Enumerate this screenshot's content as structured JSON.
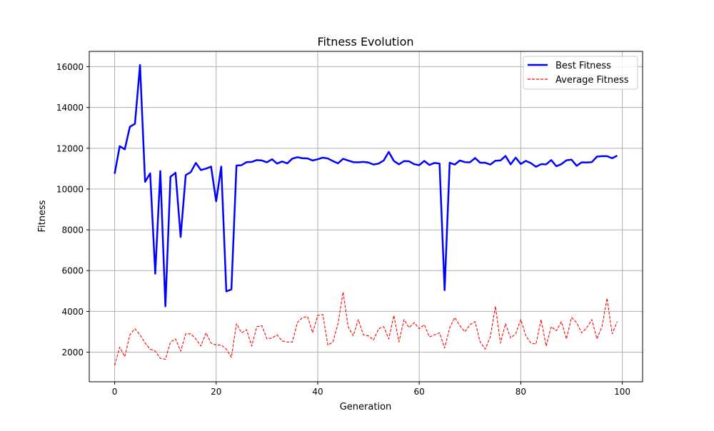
{
  "chart_data": {
    "type": "line",
    "title": "Fitness Evolution",
    "xlabel": "Generation",
    "ylabel": "Fitness",
    "xlim": [
      -5,
      104
    ],
    "ylim": [
      550,
      16750
    ],
    "grid": true,
    "legend_position": "top-right",
    "x_ticks": [
      0,
      20,
      40,
      60,
      80,
      100
    ],
    "y_ticks": [
      2000,
      4000,
      6000,
      8000,
      10000,
      12000,
      14000,
      16000
    ],
    "x": [
      0,
      1,
      2,
      3,
      4,
      5,
      6,
      7,
      8,
      9,
      10,
      11,
      12,
      13,
      14,
      15,
      16,
      17,
      18,
      19,
      20,
      21,
      22,
      23,
      24,
      25,
      26,
      27,
      28,
      29,
      30,
      31,
      32,
      33,
      34,
      35,
      36,
      37,
      38,
      39,
      40,
      41,
      42,
      43,
      44,
      45,
      46,
      47,
      48,
      49,
      50,
      51,
      52,
      53,
      54,
      55,
      56,
      57,
      58,
      59,
      60,
      61,
      62,
      63,
      64,
      65,
      66,
      67,
      68,
      69,
      70,
      71,
      72,
      73,
      74,
      75,
      76,
      77,
      78,
      79,
      80,
      81,
      82,
      83,
      84,
      85,
      86,
      87,
      88,
      89,
      90,
      91,
      92,
      93,
      94,
      95,
      96,
      97,
      98,
      99
    ],
    "series": [
      {
        "name": "Best Fitness",
        "color": "#0000ff",
        "style": "solid",
        "values": [
          10750,
          12100,
          11950,
          13050,
          13200,
          16080,
          10350,
          10770,
          5850,
          10880,
          4250,
          10600,
          10800,
          7650,
          10680,
          10830,
          11280,
          10930,
          11000,
          11100,
          9400,
          11100,
          4980,
          5080,
          11150,
          11170,
          11320,
          11330,
          11420,
          11400,
          11310,
          11460,
          11250,
          11350,
          11260,
          11490,
          11560,
          11510,
          11500,
          11400,
          11460,
          11540,
          11500,
          11370,
          11260,
          11480,
          11400,
          11320,
          11310,
          11330,
          11300,
          11200,
          11250,
          11400,
          11820,
          11380,
          11210,
          11370,
          11360,
          11220,
          11170,
          11380,
          11180,
          11280,
          11250,
          5040,
          11290,
          11200,
          11400,
          11320,
          11310,
          11520,
          11290,
          11290,
          11200,
          11390,
          11400,
          11620,
          11210,
          11540,
          11230,
          11380,
          11270,
          11090,
          11220,
          11210,
          11420,
          11120,
          11220,
          11410,
          11440,
          11140,
          11310,
          11300,
          11320,
          11590,
          11610,
          11610,
          11510,
          11640
        ]
      },
      {
        "name": "Average Fitness",
        "color": "#ff0000",
        "style": "dashed",
        "values": [
          1350,
          2250,
          1780,
          2850,
          3150,
          2850,
          2450,
          2150,
          2050,
          1700,
          1650,
          2500,
          2650,
          2050,
          2900,
          2900,
          2650,
          2300,
          2950,
          2450,
          2350,
          2350,
          2150,
          1750,
          3400,
          2950,
          3100,
          2300,
          3250,
          3300,
          2650,
          2700,
          2850,
          2550,
          2500,
          2500,
          3450,
          3700,
          3750,
          2950,
          3800,
          3850,
          2350,
          2500,
          3400,
          4950,
          3250,
          2800,
          3600,
          2850,
          2800,
          2600,
          3150,
          3250,
          2650,
          3800,
          2500,
          3600,
          3200,
          3450,
          3150,
          3350,
          2750,
          2850,
          2950,
          2200,
          3200,
          3700,
          3300,
          3000,
          3350,
          3500,
          2500,
          2150,
          2750,
          4250,
          2450,
          3400,
          2700,
          2900,
          3600,
          2800,
          2450,
          2400,
          3600,
          2300,
          3250,
          3050,
          3500,
          2650,
          3700,
          3450,
          2950,
          3200,
          3600,
          2650,
          3250,
          4650,
          2900,
          3500
        ]
      }
    ]
  }
}
